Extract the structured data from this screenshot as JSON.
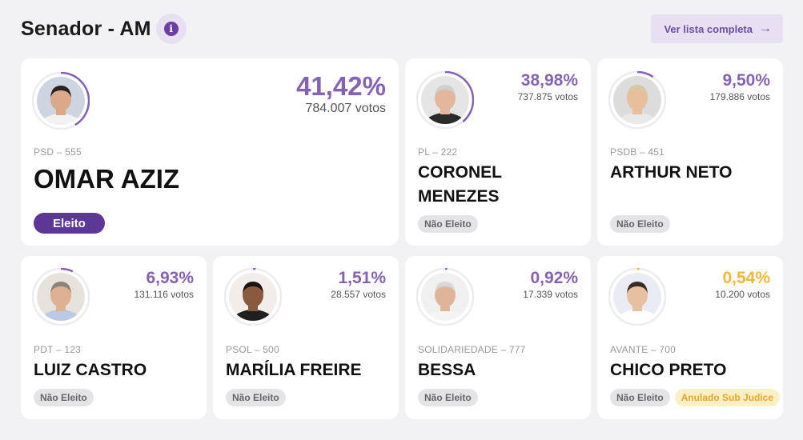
{
  "header": {
    "title": "Senador - AM",
    "info_symbol": "i",
    "list_button_label": "Ver lista completa",
    "list_button_arrow": "→"
  },
  "colors": {
    "accent": "#8463b4",
    "elected": "#5c3796",
    "annulled_text": "#e8a52a",
    "annulled_pct": "#f2b73a"
  },
  "candidates": [
    {
      "name": "OMAR AZIZ",
      "party": "PSD – 555",
      "percent": "41,42%",
      "percent_value": 41.42,
      "votes": "784.007 votos",
      "badges": [
        "Eleito"
      ],
      "photo": "avatar-photo"
    },
    {
      "name": "CORONEL MENEZES",
      "party": "PL – 222",
      "percent": "38,98%",
      "percent_value": 38.98,
      "votes": "737.875 votos",
      "badges": [
        "Não Eleito"
      ],
      "photo": "avatar-photo"
    },
    {
      "name": "ARTHUR NETO",
      "party": "PSDB – 451",
      "percent": "9,50%",
      "percent_value": 9.5,
      "votes": "179.886 votos",
      "badges": [
        "Não Eleito"
      ],
      "photo": "avatar-photo"
    },
    {
      "name": "LUIZ CASTRO",
      "party": "PDT – 123",
      "percent": "6,93%",
      "percent_value": 6.93,
      "votes": "131.116 votos",
      "badges": [
        "Não Eleito"
      ],
      "photo": "avatar-photo"
    },
    {
      "name": "MARÍLIA FREIRE",
      "party": "PSOL – 500",
      "percent": "1,51%",
      "percent_value": 1.51,
      "votes": "28.557 votos",
      "badges": [
        "Não Eleito"
      ],
      "photo": "avatar-photo"
    },
    {
      "name": "BESSA",
      "party": "SOLIDARIEDADE – 777",
      "percent": "0,92%",
      "percent_value": 0.92,
      "votes": "17.339 votos",
      "badges": [
        "Não Eleito"
      ],
      "photo": "avatar-photo"
    },
    {
      "name": "CHICO PRETO",
      "party": "AVANTE – 700",
      "percent": "0,54%",
      "percent_value": 0.54,
      "votes": "10.200 votos",
      "badges": [
        "Não Eleito",
        "Anulado Sub Judice"
      ],
      "photo": "avatar-photo"
    }
  ]
}
